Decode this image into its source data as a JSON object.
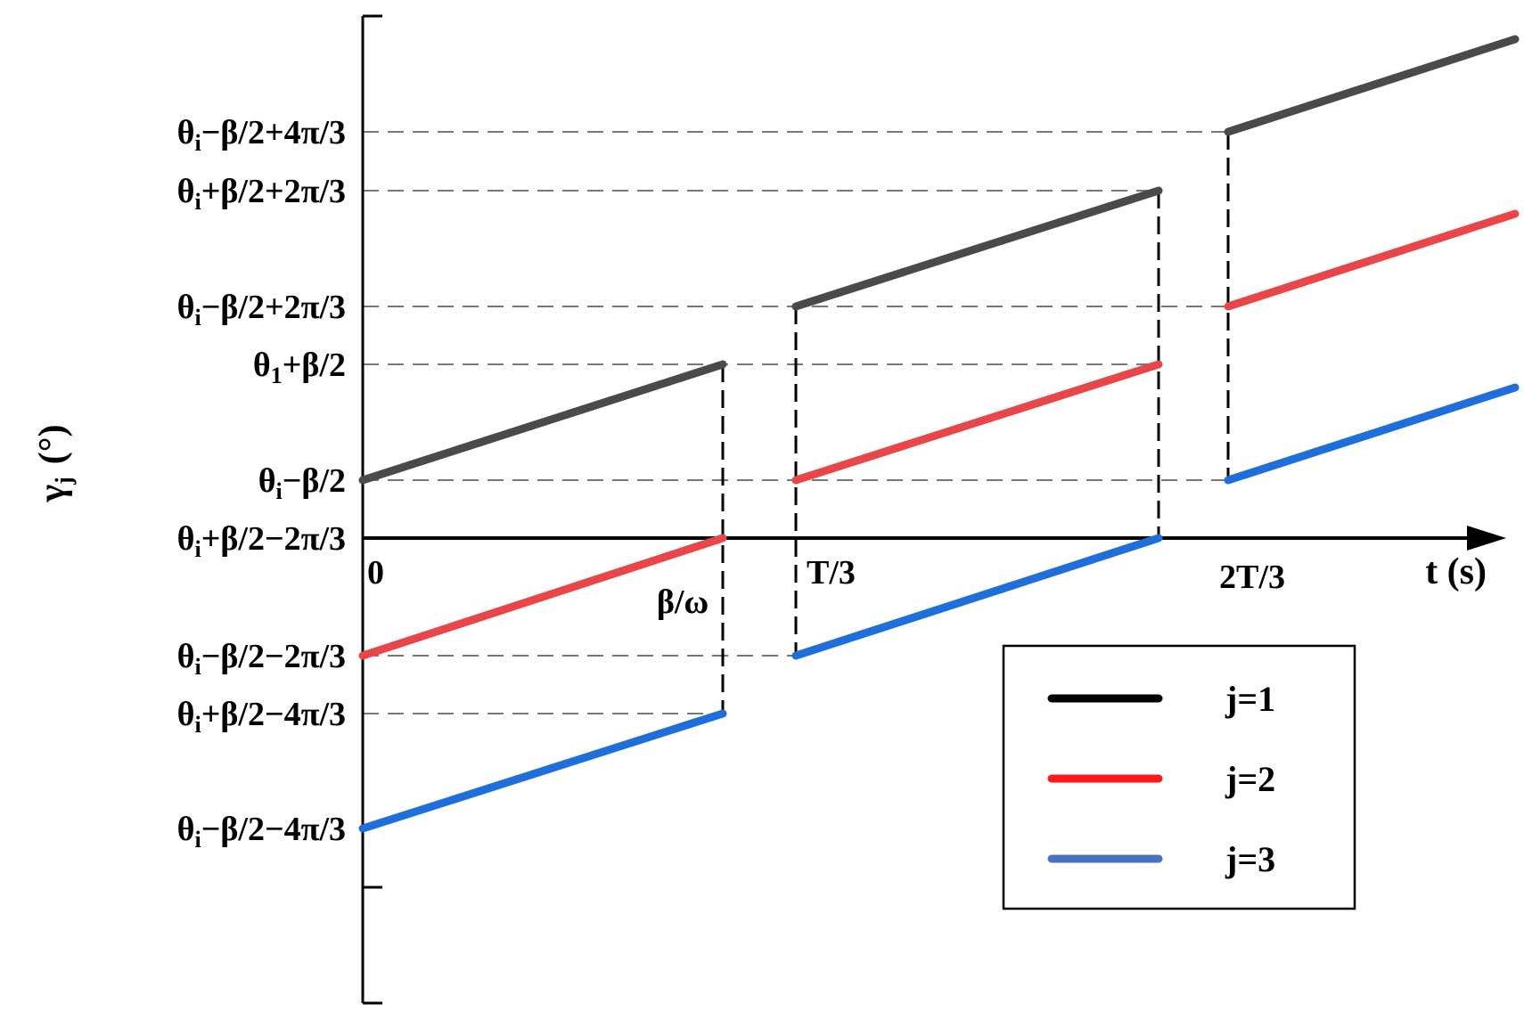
{
  "chart_data": {
    "type": "line",
    "ylabel": {
      "main": "γ",
      "sub": "j",
      "unit": "(°)"
    },
    "xlabel": "t (s)",
    "x_ticks": [
      {
        "key": "zero",
        "label": "0"
      },
      {
        "key": "bw",
        "label": "β/ω"
      },
      {
        "key": "T3",
        "label": "T/3"
      },
      {
        "key": "2T3",
        "label": "2T/3"
      }
    ],
    "y_ticks": [
      {
        "key": "y_p4_m",
        "parts": [
          [
            "θ",
            ""
          ],
          [
            "i",
            "sub"
          ],
          [
            "−β/2+4π/3",
            ""
          ]
        ]
      },
      {
        "key": "y_p2_p",
        "parts": [
          [
            "θ",
            ""
          ],
          [
            "i",
            "sub"
          ],
          [
            "+β/2+2π/3",
            ""
          ]
        ]
      },
      {
        "key": "y_p2_m",
        "parts": [
          [
            "θ",
            ""
          ],
          [
            "i",
            "sub"
          ],
          [
            "−β/2+2π/3",
            ""
          ]
        ]
      },
      {
        "key": "y_0_p",
        "parts": [
          [
            "θ",
            ""
          ],
          [
            "1",
            "sub"
          ],
          [
            "+β/2",
            ""
          ]
        ]
      },
      {
        "key": "y_0_m",
        "parts": [
          [
            "θ",
            ""
          ],
          [
            "i",
            "sub"
          ],
          [
            "−β/2",
            ""
          ]
        ]
      },
      {
        "key": "y_m2_p",
        "parts": [
          [
            "θ",
            ""
          ],
          [
            "i",
            "sub"
          ],
          [
            "+β/2−2π/3",
            ""
          ]
        ]
      },
      {
        "key": "y_m2_m",
        "parts": [
          [
            "θ",
            ""
          ],
          [
            "i",
            "sub"
          ],
          [
            "−β/2−2π/3",
            ""
          ]
        ]
      },
      {
        "key": "y_m4_p",
        "parts": [
          [
            "θ",
            ""
          ],
          [
            "i",
            "sub"
          ],
          [
            "+β/2−4π/3",
            ""
          ]
        ]
      },
      {
        "key": "y_m4_m",
        "parts": [
          [
            "θ",
            ""
          ],
          [
            "i",
            "sub"
          ],
          [
            "−β/2−4π/3",
            ""
          ]
        ]
      }
    ],
    "series": [
      {
        "name": "j=1",
        "color": "#4a4a4a",
        "segments": [
          {
            "x": [
              "zero",
              "bw"
            ],
            "y": [
              "y_0_m",
              "y_0_p"
            ]
          },
          {
            "x": [
              "T3",
              "t_end2"
            ],
            "y": [
              "y_p2_m",
              "y_p2_p"
            ]
          },
          {
            "x": [
              "2T3",
              "t_end"
            ],
            "y": [
              "y_p4_m",
              "y_p4_end"
            ]
          }
        ]
      },
      {
        "name": "j=2",
        "color": "#e84649",
        "segments": [
          {
            "x": [
              "zero",
              "bw"
            ],
            "y": [
              "y_m2_m",
              "y_m2_p"
            ]
          },
          {
            "x": [
              "T3",
              "t_end2"
            ],
            "y": [
              "y_0_m",
              "y_0_p"
            ]
          },
          {
            "x": [
              "2T3",
              "t_end"
            ],
            "y": [
              "y_p2_m",
              "y_p2_end"
            ]
          }
        ]
      },
      {
        "name": "j=3",
        "color": "#1e6fdc",
        "segments": [
          {
            "x": [
              "zero",
              "bw"
            ],
            "y": [
              "y_m4_m",
              "y_m4_p"
            ]
          },
          {
            "x": [
              "T3",
              "t_end2"
            ],
            "y": [
              "y_m2_m",
              "y_m2_p"
            ]
          },
          {
            "x": [
              "2T3",
              "t_end"
            ],
            "y": [
              "y_0_m",
              "y_0_end"
            ]
          }
        ]
      }
    ],
    "legend": {
      "position": "bottom-right",
      "entries": [
        {
          "label": "j=1",
          "color": "#000000"
        },
        {
          "label": "j=2",
          "color": "#ff1a1a"
        },
        {
          "label": "j=3",
          "color": "#4472c4"
        }
      ]
    },
    "grid": false
  }
}
